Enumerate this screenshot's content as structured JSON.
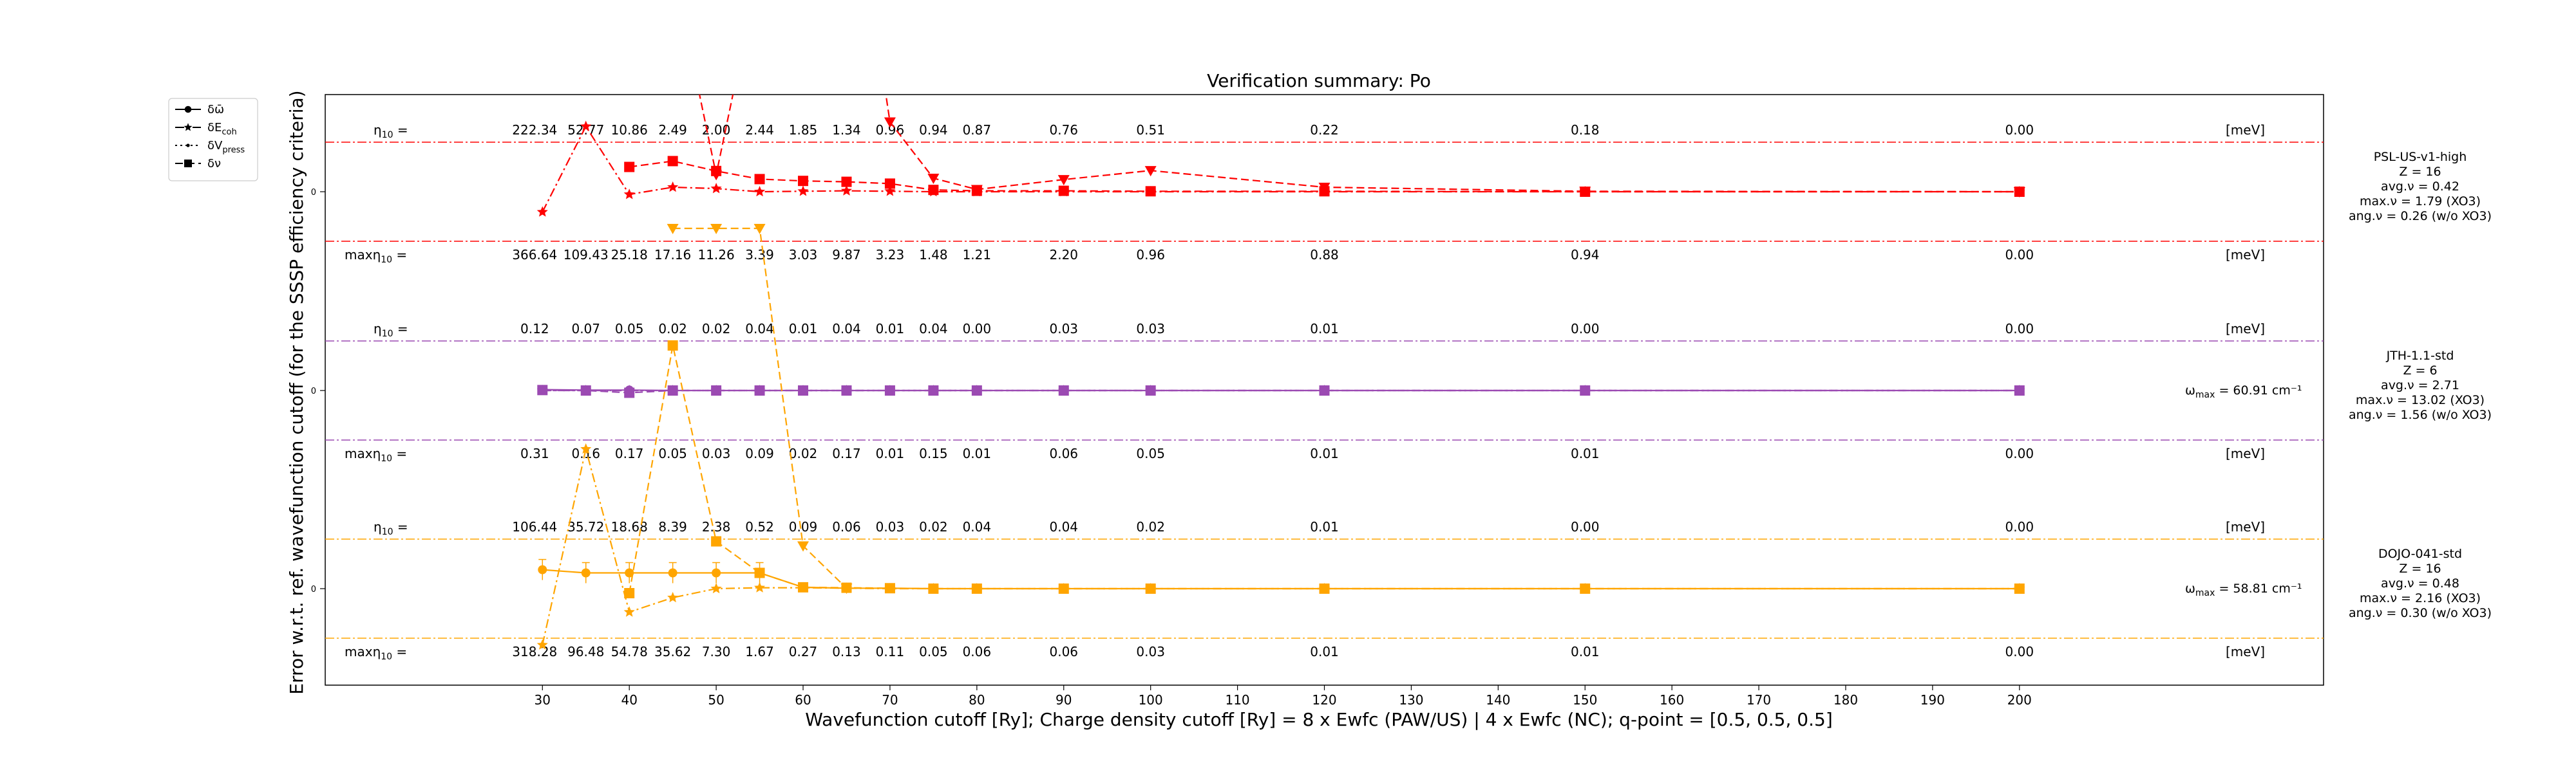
{
  "chart_data": {
    "type": "line",
    "title": "Verification summary: Po",
    "xlabel": "Wavefunction cutoff [Ry]; Charge density cutoff [Ry] = 8 x Ewfc (PAW/US) | 4 x Ewfc (NC); q-point = [0.5, 0.5, 0.5]",
    "ylabel": "Error w.r.t. ref. wavefunction cutoff (for the SSSP efficiency criteria)",
    "xlim": [
      5,
      235
    ],
    "x_ticks": [
      30,
      40,
      50,
      60,
      70,
      80,
      90,
      100,
      110,
      120,
      130,
      140,
      150,
      160,
      170,
      180,
      190,
      200
    ],
    "ytick_label": "0",
    "grid": false,
    "legend_position": "top-left outside",
    "legend": [
      {
        "label": "δω̄",
        "style": "solid",
        "marker": "circle"
      },
      {
        "label": "δE_coh",
        "style": "dashdot",
        "marker": "star"
      },
      {
        "label": "δV_press",
        "style": "dotted",
        "marker": "dot"
      },
      {
        "label": "δν",
        "style": "dashed",
        "marker": "square"
      }
    ],
    "cutoffs": [
      30,
      35,
      40,
      45,
      50,
      55,
      60,
      65,
      70,
      75,
      80,
      90,
      100,
      120,
      150,
      200
    ],
    "unit": "[meV]",
    "eta_label": "η10 =",
    "max_eta_label": "maxη10 =",
    "pseudopotentials": [
      {
        "name": "PSL-US-v1-high",
        "color": "#ff0000",
        "info": [
          "PSL-US-v1-high",
          "Z = 16",
          "avg.ν = 0.42",
          "max.ν = 1.79 (XO3)",
          "ang.ν = 0.26 (w/o XO3)"
        ],
        "omega_max": "",
        "eta": [
          "222.34",
          "52.77",
          "10.86",
          "2.49",
          "2.00",
          "2.44",
          "1.85",
          "1.34",
          "0.96",
          "0.94",
          "0.87",
          "0.76",
          "0.51",
          "0.22",
          "0.18",
          "0.00"
        ],
        "max_eta": [
          "366.64",
          "109.43",
          "25.18",
          "17.16",
          "11.26",
          "3.39",
          "3.03",
          "9.87",
          "3.23",
          "1.48",
          "1.21",
          "2.20",
          "0.96",
          "0.88",
          "0.94",
          "0.00"
        ],
        "series": [
          {
            "name": "δω̄",
            "x": [],
            "y": []
          },
          {
            "name": "δE_coh",
            "x": [
              30,
              35,
              40,
              45,
              50,
              55,
              60,
              65,
              70,
              75,
              80,
              90,
              100,
              120,
              150,
              200
            ],
            "y": [
              -0.45,
              1.45,
              -0.06,
              0.1,
              0.07,
              0.0,
              0.01,
              0.02,
              0.01,
              0.0,
              0.0,
              0.0,
              0.0,
              0.0,
              0.0,
              0.0
            ]
          },
          {
            "name": "δV_press",
            "x": [],
            "y": []
          },
          {
            "name": "δν",
            "x": [
              40,
              45,
              50,
              55,
              60,
              65,
              70,
              75,
              80,
              90,
              100,
              120,
              150,
              200
            ],
            "y": [
              0.55,
              0.68,
              0.46,
              0.28,
              0.24,
              0.22,
              0.18,
              0.04,
              0.02,
              0.02,
              0.01,
              0.01,
              0.0,
              0.0
            ]
          },
          {
            "name": "δν (large)",
            "x": [
              35,
              40,
              45,
              50,
              55,
              60,
              65,
              70,
              75,
              80,
              90,
              100,
              120,
              150,
              200
            ],
            "y": [
              8.0,
              8.0,
              5.0,
              0.38,
              5.0,
              8.0,
              8.0,
              1.55,
              0.3,
              0.05,
              0.27,
              0.47,
              0.1,
              0.01,
              0.0
            ]
          }
        ]
      },
      {
        "name": "JTH-1.1-std",
        "color": "#9b4ab2",
        "info": [
          "JTH-1.1-std",
          "Z = 6",
          "avg.ν = 2.71",
          "max.ν = 13.02 (XO3)",
          "ang.ν = 1.56 (w/o XO3)"
        ],
        "omega_max": "60.91 cm⁻¹",
        "eta": [
          "0.12",
          "0.07",
          "0.05",
          "0.02",
          "0.02",
          "0.04",
          "0.01",
          "0.04",
          "0.01",
          "0.04",
          "0.00",
          "0.03",
          "0.03",
          "0.01",
          "0.00",
          "0.00"
        ],
        "max_eta": [
          "0.31",
          "0.16",
          "0.17",
          "0.05",
          "0.03",
          "0.09",
          "0.02",
          "0.17",
          "0.01",
          "0.15",
          "0.01",
          "0.06",
          "0.05",
          "0.01",
          "0.01",
          "0.00"
        ],
        "series": [
          {
            "name": "δω̄",
            "x": [
              30,
              35,
              40,
              45,
              50,
              55,
              60,
              65,
              70,
              75,
              80,
              90,
              100,
              120,
              150,
              200
            ],
            "y": [
              0.02,
              0.01,
              0.01,
              0.0,
              0.0,
              0.0,
              0.0,
              0.0,
              0.0,
              0.0,
              0.0,
              0.0,
              0.0,
              0.0,
              0.0,
              0.0
            ]
          },
          {
            "name": "δE_coh",
            "x": [
              30,
              35,
              40,
              45,
              50,
              55,
              60,
              65,
              70,
              75,
              80,
              90,
              100,
              120,
              150,
              200
            ],
            "y": [
              0.0,
              0.0,
              0.0,
              0.0,
              0.0,
              0.0,
              0.0,
              0.0,
              0.0,
              0.0,
              0.0,
              0.0,
              0.0,
              0.0,
              0.0,
              0.0
            ]
          },
          {
            "name": "δV_press",
            "x": [
              30,
              35,
              40,
              45,
              50,
              55,
              60,
              65,
              70,
              75,
              80,
              90,
              100,
              120,
              150,
              200
            ],
            "y": [
              0.0,
              0.0,
              0.0,
              0.0,
              0.0,
              0.0,
              0.0,
              0.0,
              0.0,
              0.0,
              0.0,
              0.0,
              0.0,
              0.0,
              0.0,
              0.0
            ]
          },
          {
            "name": "δν",
            "x": [
              30,
              35,
              40,
              45,
              50,
              55,
              60,
              65,
              70,
              75,
              80,
              90,
              100,
              120,
              150,
              200
            ],
            "y": [
              0.01,
              0.0,
              -0.05,
              0.0,
              0.0,
              0.0,
              0.0,
              0.0,
              0.0,
              0.0,
              0.0,
              0.0,
              0.0,
              0.0,
              0.0,
              0.0
            ]
          }
        ]
      },
      {
        "name": "DOJO-041-std",
        "color": "#ffa500",
        "info": [
          "DOJO-041-std",
          "Z = 16",
          "avg.ν = 0.48",
          "max.ν = 2.16 (XO3)",
          "ang.ν = 0.30 (w/o XO3)"
        ],
        "omega_max": "58.81 cm⁻¹",
        "eta": [
          "106.44",
          "35.72",
          "18.68",
          "8.39",
          "2.38",
          "0.52",
          "0.09",
          "0.06",
          "0.03",
          "0.02",
          "0.04",
          "0.04",
          "0.02",
          "0.01",
          "0.00",
          "0.00"
        ],
        "max_eta": [
          "318.28",
          "96.48",
          "54.78",
          "35.62",
          "7.30",
          "1.67",
          "0.27",
          "0.13",
          "0.11",
          "0.05",
          "0.06",
          "0.06",
          "0.03",
          "0.01",
          "0.01",
          "0.00"
        ],
        "series": [
          {
            "name": "δω̄",
            "x": [
              30,
              35,
              40,
              45,
              50,
              55,
              60,
              65,
              70,
              75,
              80,
              90,
              100,
              120,
              150,
              200
            ],
            "y": [
              0.42,
              0.35,
              0.35,
              0.35,
              0.35,
              0.35,
              0.03,
              0.01,
              0.01,
              0.0,
              0.0,
              0.0,
              0.0,
              0.0,
              0.0,
              0.0
            ]
          },
          {
            "name": "δE_coh",
            "x": [
              30,
              35,
              40,
              45,
              50,
              55,
              60,
              65,
              70,
              75,
              80,
              90,
              100,
              120,
              150,
              200
            ],
            "y": [
              -1.25,
              3.1,
              -0.52,
              -0.2,
              0.0,
              0.02,
              0.02,
              0.01,
              0.0,
              0.0,
              0.0,
              0.0,
              0.0,
              0.0,
              0.0,
              0.0
            ]
          },
          {
            "name": "δV_press",
            "x": [],
            "y": []
          },
          {
            "name": "δν",
            "x": [
              40,
              45,
              50,
              55,
              60,
              65,
              70,
              75,
              80,
              90,
              100,
              120,
              150,
              200
            ],
            "y": [
              -0.1,
              5.4,
              1.05,
              0.35,
              0.03,
              0.02,
              0.01,
              0.0,
              0.0,
              0.0,
              0.0,
              0.0,
              0.0,
              0.0
            ]
          },
          {
            "name": "δν (large)",
            "x": [
              45,
              50,
              55,
              60,
              65
            ],
            "y": [
              8.0,
              8.0,
              8.0,
              0.95,
              0.01
            ]
          }
        ]
      }
    ]
  }
}
